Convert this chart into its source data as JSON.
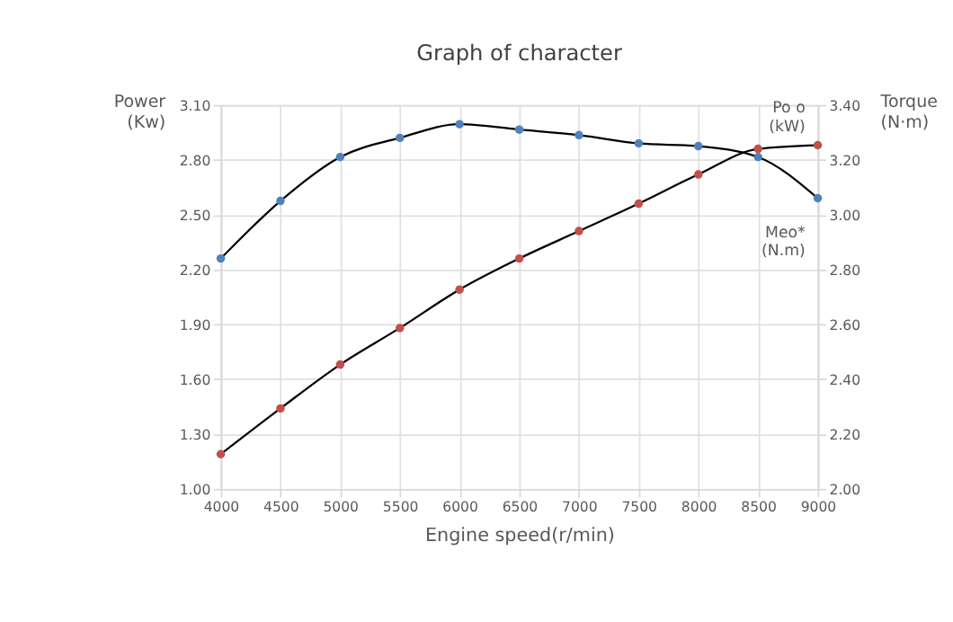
{
  "chart_data": {
    "type": "line",
    "title": "Graph of character",
    "xlabel": "Engine speed(r/min)",
    "ylabel": "Power (Kw)",
    "y2label": "Torque (N·m)",
    "x": [
      4000,
      4500,
      5000,
      5500,
      6000,
      6500,
      7000,
      7500,
      8000,
      8500,
      9000
    ],
    "series": [
      {
        "name": "Po o (kW)",
        "color": "#c0504d",
        "values": [
          1.19,
          1.44,
          1.68,
          1.88,
          2.09,
          2.26,
          2.41,
          2.56,
          2.72,
          2.86,
          2.88
        ]
      },
      {
        "name": "Meo* (N.m)",
        "color": "#4f81bd",
        "axis": "y2",
        "values": [
          2.84,
          3.05,
          3.21,
          3.28,
          3.33,
          3.31,
          3.29,
          3.26,
          3.25,
          3.21,
          3.06
        ]
      }
    ],
    "xlim": [
      4000,
      9000
    ],
    "xticks": [
      4000,
      4500,
      5000,
      5500,
      6000,
      6500,
      7000,
      7500,
      8000,
      8500,
      9000
    ],
    "ylim": [
      1.0,
      3.1
    ],
    "yticks": [
      {
        "value": 1.0,
        "label": "1.00"
      },
      {
        "value": 1.3,
        "label": "1.30"
      },
      {
        "value": 1.6,
        "label": "1.60"
      },
      {
        "value": 1.9,
        "label": "1.90"
      },
      {
        "value": 2.2,
        "label": "2.20"
      },
      {
        "value": 2.5,
        "label": "2.50"
      },
      {
        "value": 2.8,
        "label": "2.80"
      },
      {
        "value": 3.1,
        "label": "3.10"
      }
    ],
    "y2lim": [
      2.0,
      3.4
    ],
    "y2ticks": [
      {
        "value": 2.0,
        "label": "2.00"
      },
      {
        "value": 2.2,
        "label": "2.20"
      },
      {
        "value": 2.4,
        "label": "2.40"
      },
      {
        "value": 2.6,
        "label": "2.60"
      },
      {
        "value": 2.8,
        "label": "2.80"
      },
      {
        "value": 3.0,
        "label": "3.00"
      },
      {
        "value": 3.2,
        "label": "3.20"
      },
      {
        "value": 3.4,
        "label": "3.40"
      }
    ],
    "grid": true,
    "marker": "circle",
    "line_style": "solid"
  }
}
